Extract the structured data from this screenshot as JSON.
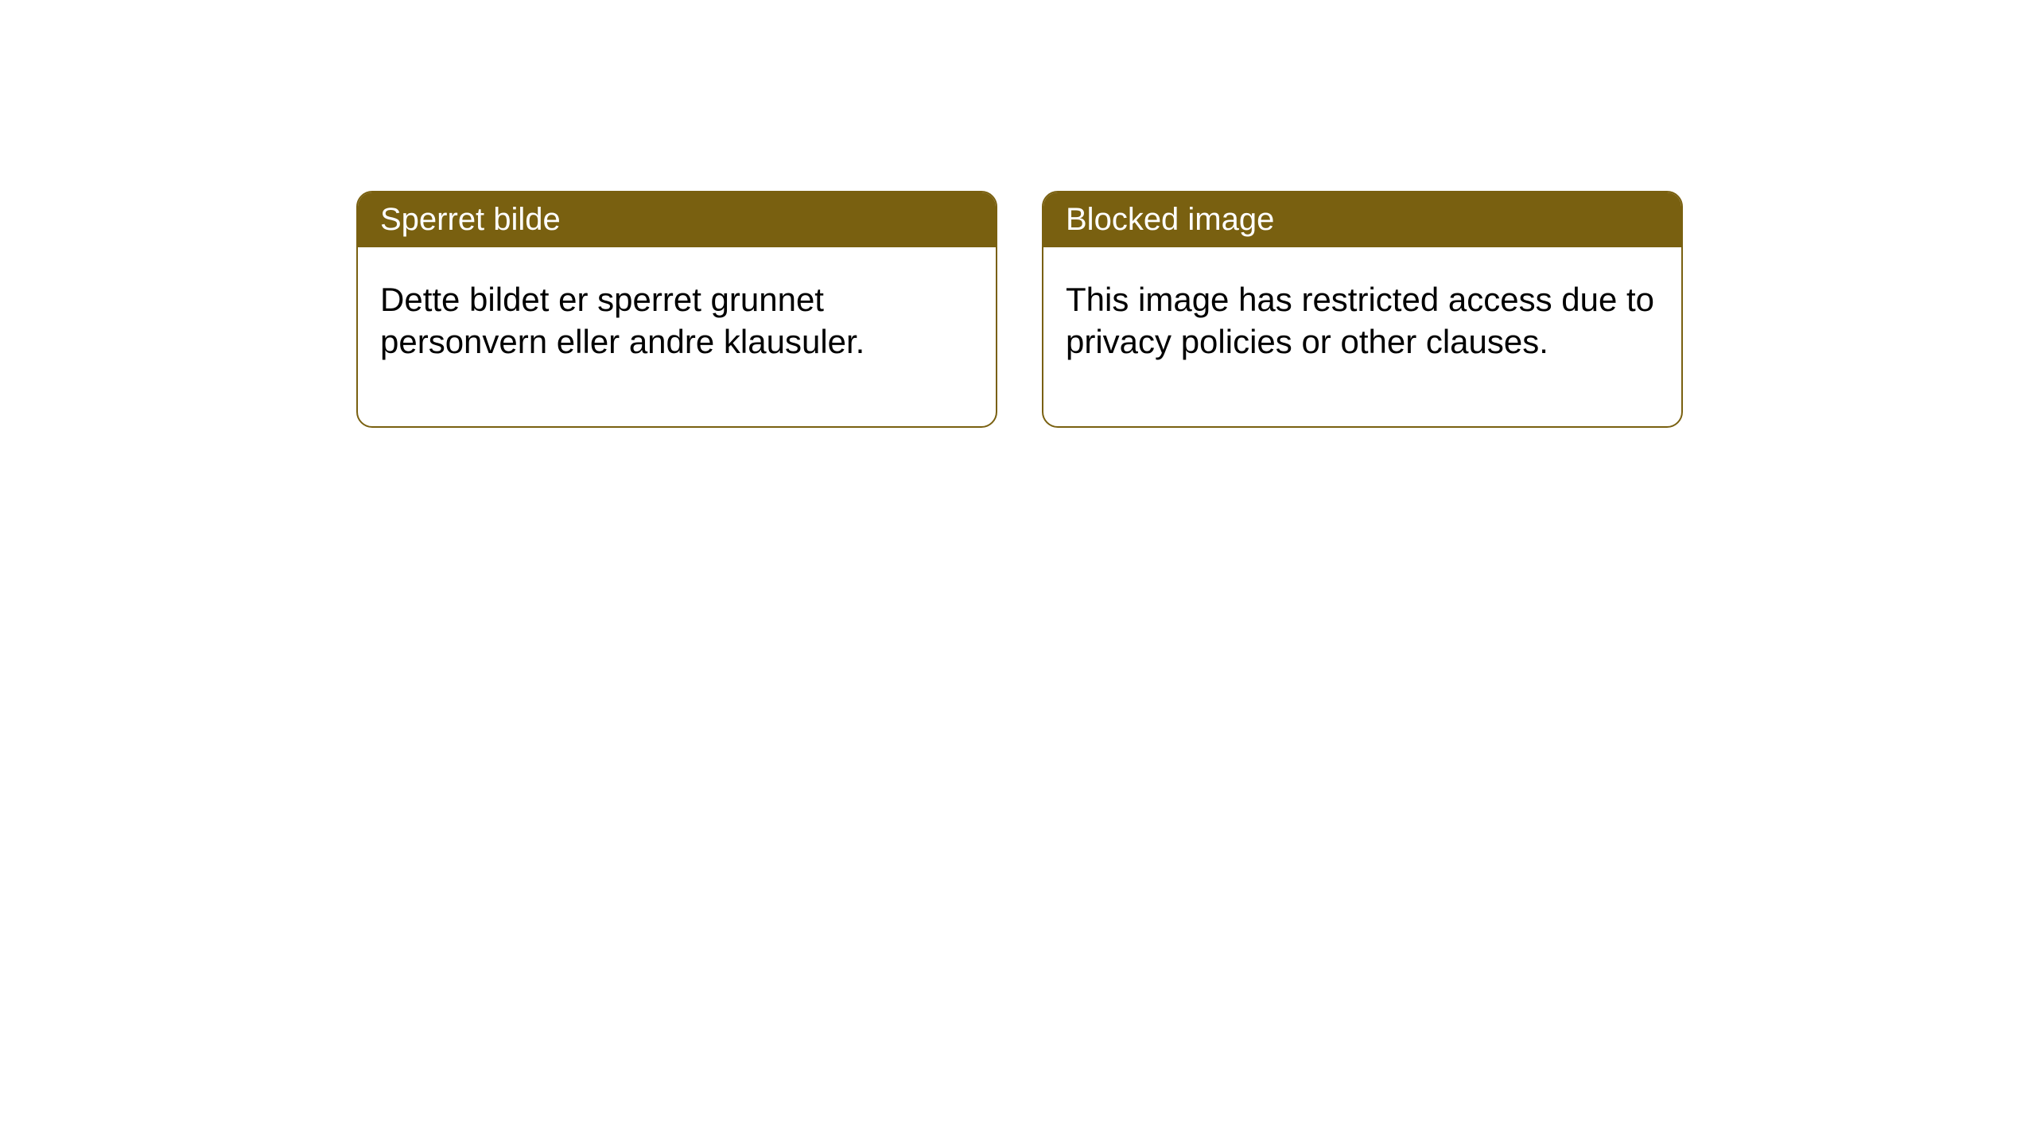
{
  "cards": [
    {
      "title": "Sperret bilde",
      "body": "Dette bildet er sperret grunnet personvern eller andre klausuler."
    },
    {
      "title": "Blocked image",
      "body": "This image has restricted access due to privacy policies or other clauses."
    }
  ],
  "style": {
    "background_color": "#ffffff",
    "card_border_color": "#796010",
    "card_header_bg": "#796010",
    "card_header_text_color": "#ffffff",
    "card_body_text_color": "#000000",
    "card_border_radius": 20,
    "header_fontsize": 40,
    "body_fontsize": 42
  }
}
